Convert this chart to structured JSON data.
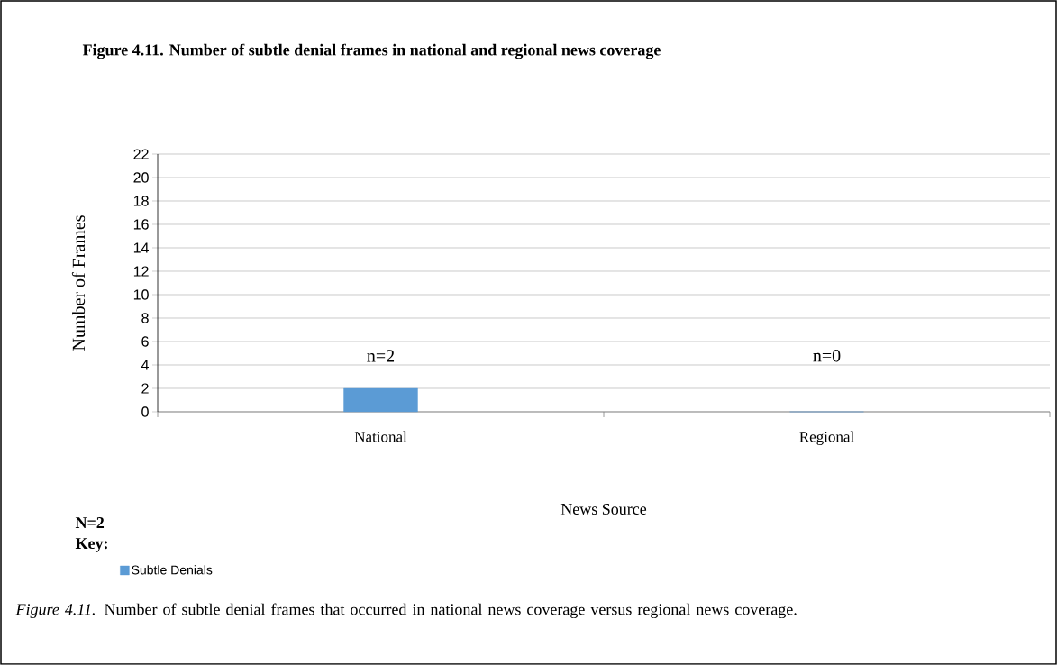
{
  "chart_data": {
    "type": "bar",
    "title": "Figure 4.11. Number of subtle denial frames in national and regional news coverage",
    "xlabel": "News Source",
    "ylabel": "Number of Frames",
    "categories": [
      "National",
      "Regional"
    ],
    "series": [
      {
        "name": "Subtle Denials",
        "color": "#5b9bd5",
        "values": [
          2,
          0
        ],
        "value_labels": [
          "n=2",
          "n=0"
        ]
      }
    ],
    "ylim": [
      0,
      22
    ],
    "yticks": [
      0,
      2,
      4,
      6,
      8,
      10,
      12,
      14,
      16,
      18,
      20,
      22
    ],
    "grid": "y",
    "legend": "bottom left",
    "legend_title": "Key:",
    "annotations": [
      "N=2",
      "*Figure 4.11.* Number of subtle denial frames that occurred in national news coverage versus regional news coverage."
    ]
  }
}
